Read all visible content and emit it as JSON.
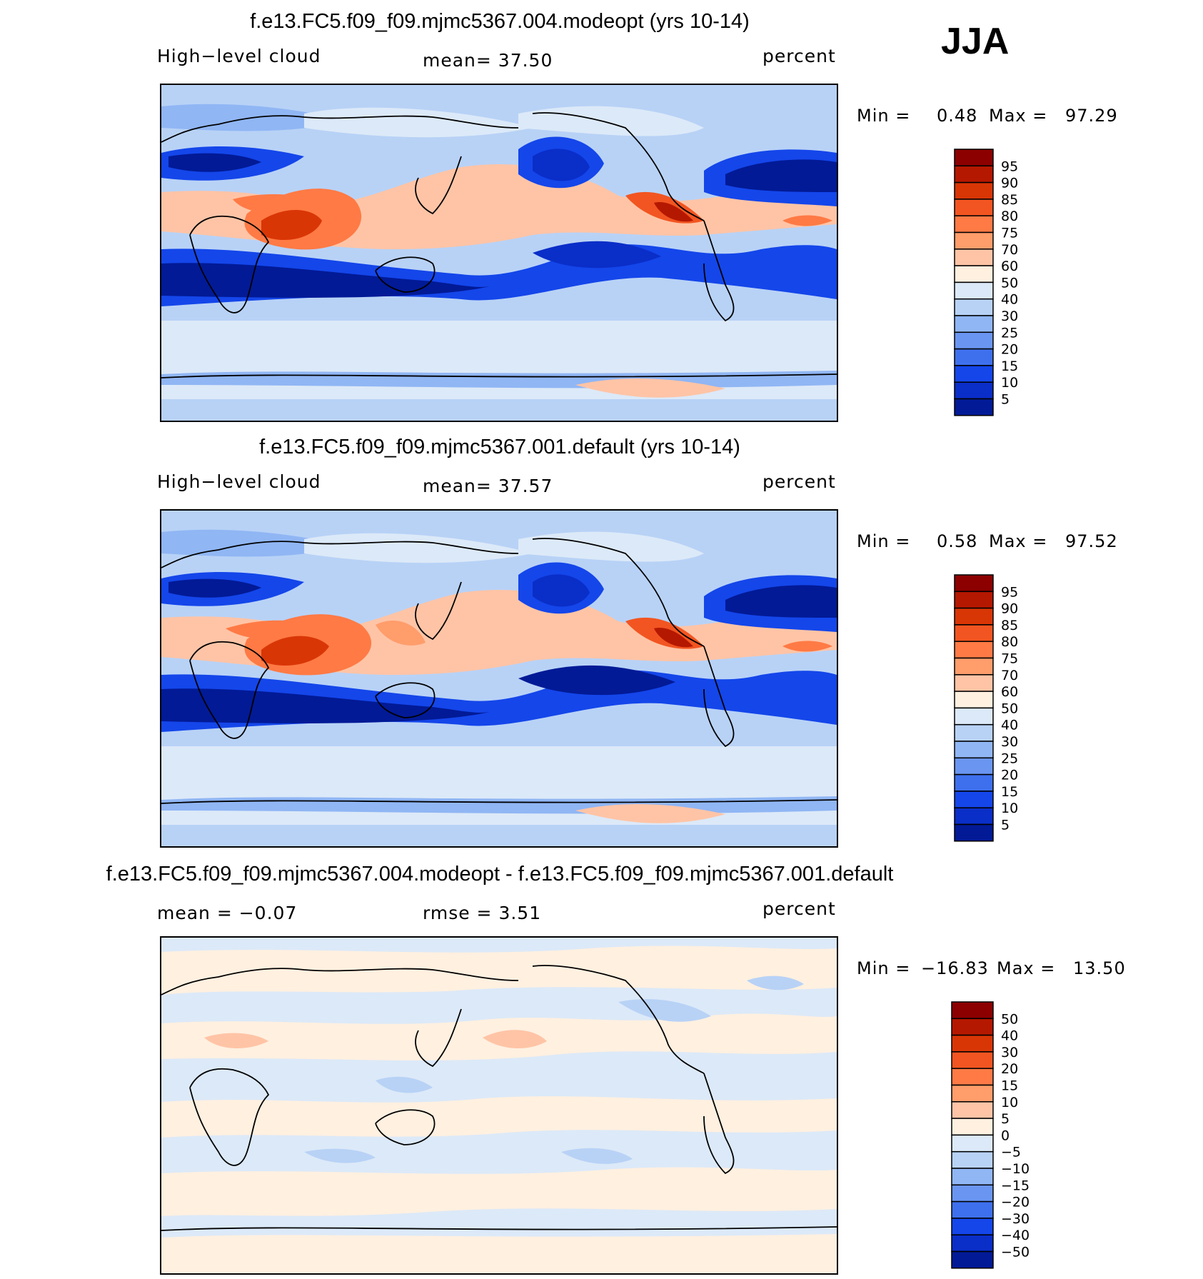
{
  "season": "JJA",
  "panels": [
    {
      "title": "f.e13.FC5.f09_f09.mjmc5367.004.modeopt (yrs 10-14)",
      "left_label": "High−level cloud",
      "center_label": "mean=   37.50",
      "units": "percent",
      "min_label": "Min =",
      "min_value": "0.48",
      "max_label": "Max =",
      "max_value": "97.29",
      "colorbar": {
        "levels": [
          "95",
          "90",
          "85",
          "80",
          "75",
          "70",
          "60",
          "50",
          "40",
          "30",
          "25",
          "20",
          "15",
          "10",
          "5"
        ],
        "colors": [
          "#8c0000",
          "#b51800",
          "#d93606",
          "#f25521",
          "#ff7a45",
          "#ff9d6b",
          "#ffc4a6",
          "#fff0e0",
          "#dce9f8",
          "#b8d2f6",
          "#90b6f4",
          "#6a96f2",
          "#3e70ee",
          "#1446ea",
          "#0a2ec8",
          "#021a96"
        ]
      }
    },
    {
      "title": "f.e13.FC5.f09_f09.mjmc5367.001.default (yrs 10-14)",
      "left_label": "High−level cloud",
      "center_label": "mean=   37.57",
      "units": "percent",
      "min_label": "Min =",
      "min_value": "0.58",
      "max_label": "Max =",
      "max_value": "97.52",
      "colorbar": {
        "levels": [
          "95",
          "90",
          "85",
          "80",
          "75",
          "70",
          "60",
          "50",
          "40",
          "30",
          "25",
          "20",
          "15",
          "10",
          "5"
        ],
        "colors": [
          "#8c0000",
          "#b51800",
          "#d93606",
          "#f25521",
          "#ff7a45",
          "#ff9d6b",
          "#ffc4a6",
          "#fff0e0",
          "#dce9f8",
          "#b8d2f6",
          "#90b6f4",
          "#6a96f2",
          "#3e70ee",
          "#1446ea",
          "#0a2ec8",
          "#021a96"
        ]
      }
    },
    {
      "title": "f.e13.FC5.f09_f09.mjmc5367.004.modeopt - f.e13.FC5.f09_f09.mjmc5367.001.default",
      "left_label": "mean =   −0.07",
      "center_label": "rmse =    3.51",
      "units": "percent",
      "min_label": "Min =",
      "min_value": "−16.83",
      "max_label": "Max =",
      "max_value": "13.50",
      "colorbar": {
        "levels": [
          "50",
          "40",
          "30",
          "20",
          "15",
          "10",
          "5",
          "0",
          "−5",
          "−10",
          "−15",
          "−20",
          "−30",
          "−40",
          "−50"
        ],
        "colors": [
          "#8c0000",
          "#b51800",
          "#d93606",
          "#f25521",
          "#ff7a45",
          "#ff9d6b",
          "#ffc4a6",
          "#fff0e0",
          "#dce9f8",
          "#b8d2f6",
          "#90b6f4",
          "#6a96f2",
          "#3e70ee",
          "#1446ea",
          "#0a2ec8",
          "#021a96"
        ]
      }
    }
  ]
}
